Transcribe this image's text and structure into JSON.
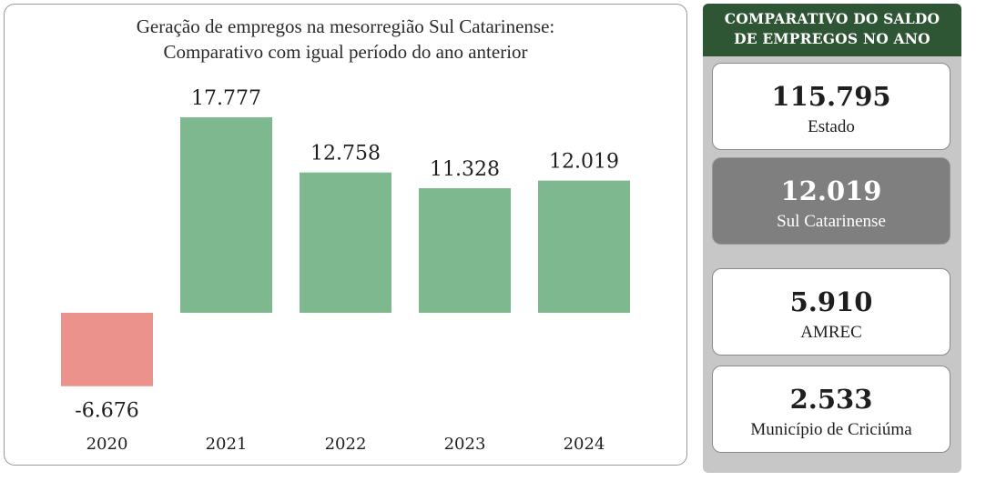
{
  "chart_data": {
    "type": "bar",
    "title": [
      "Geração de empregos na mesorregião Sul Catarinense:",
      "Comparativo com igual período do ano anterior"
    ],
    "categories": [
      "2020",
      "2021",
      "2022",
      "2023",
      "2024"
    ],
    "values": [
      -6676,
      17777,
      12758,
      11328,
      12019
    ],
    "value_labels": [
      "-6.676",
      "17.777",
      "12.758",
      "11.328",
      "12.019"
    ],
    "colors": {
      "positive": "#7db88f",
      "negative": "#ea928b"
    },
    "grid": false,
    "legend": "none"
  },
  "side_panel": {
    "title_line1": "COMPARATIVO DO SALDO",
    "title_line2": "DE EMPREGOS NO ANO",
    "cards": [
      {
        "value": "115.795",
        "label": "Estado"
      },
      {
        "value": "12.019",
        "label": "Sul Catarinense"
      },
      {
        "value": "5.910",
        "label": "AMREC"
      },
      {
        "value": "2.533",
        "label": "Município de Criciúma"
      }
    ]
  },
  "colors": {
    "header_bg": "#2f5634",
    "highlight_card": "#7f7f7f",
    "panel_bg": "#c7c7c7"
  }
}
